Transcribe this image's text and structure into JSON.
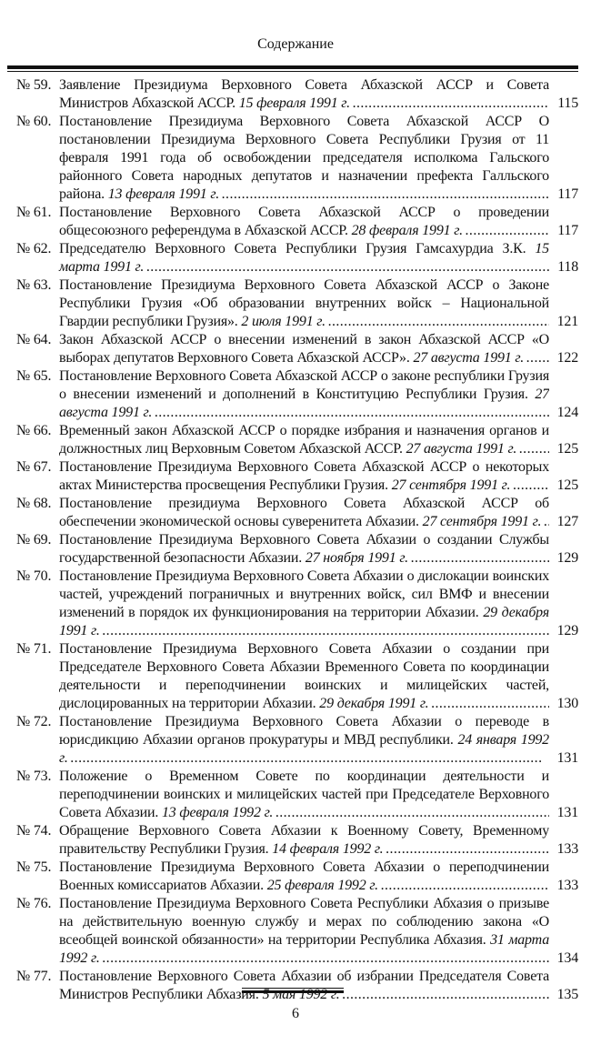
{
  "header": {
    "title": "Содержание"
  },
  "entries": [
    {
      "num": "№ 59.",
      "text": "Заявление Президиума Верховного Совета Абхазской АССР и Совета Министров Абхазской АССР.",
      "date": "15 февраля 1991 г.",
      "page": "115"
    },
    {
      "num": "№ 60.",
      "text": "Постановление Президиума Верховного Совета Абхазской АССР О постановлении Президиума Верховного Совета Республики Грузия от 11 февраля 1991 года об освобождении председателя исполкома Гальского районного Совета народных депутатов и назначении префекта Галльского района.",
      "date": "13 февраля 1991 г.",
      "page": "117"
    },
    {
      "num": "№ 61.",
      "text": "Постановление Верховного Совета Абхазской АССР о проведении общесоюзного референдума в Абхазской АССР.",
      "date": "28 февраля 1991 г.",
      "page": "117"
    },
    {
      "num": "№ 62.",
      "text": "Председателю Верховного Совета Республики Грузия Гамсахурдиа З.К.",
      "date": "15 марта 1991 г.",
      "page": "118"
    },
    {
      "num": "№ 63.",
      "text": "Постановление Президиума Верховного Совета Абхазской АССР о Законе Республики Грузия «Об образовании внутренних войск – Национальной Гвардии республики Грузия».",
      "date": "2 июля 1991 г.",
      "page": "121"
    },
    {
      "num": "№ 64.",
      "text": "Закон Абхазской АССР о внесении изменений в закон Абхазской АССР «О выборах депутатов Верховного Совета Абхазской АССР».",
      "date": "27 августа 1991 г.",
      "page": "122"
    },
    {
      "num": "№ 65.",
      "text": "Постановление Верховного Совета Абхазской АССР о законе республики Грузия о внесении изменений и дополнений в Конституцию Республики Грузия.",
      "date": "27 августа 1991 г.",
      "page": "124"
    },
    {
      "num": "№ 66.",
      "text": "Временный закон Абхазской АССР о порядке избрания и назначения органов и должностных лиц Верховным Советом Абхазской АССР.",
      "date": "27 августа 1991 г.",
      "page": "125"
    },
    {
      "num": "№ 67.",
      "text": "Постановление Президиума Верховного Совета Абхазской АССР о некоторых актах Министерства просвещения Республики Грузия.",
      "date": "27 сентября 1991 г.",
      "page": "125"
    },
    {
      "num": "№ 68.",
      "text": "Постановление президиума Верховного Совета Абхазской АССР об обеспечении экономической основы суверенитета Абхазии.",
      "date": "27 сентября 1991 г.",
      "page": "127"
    },
    {
      "num": "№ 69.",
      "text": "Постановление Президиума Верховного Совета Абхазии о создании Службы государственной безопасности Абхазии.",
      "date": "27 ноября 1991 г.",
      "page": "129"
    },
    {
      "num": "№ 70.",
      "text": "Постановление Президиума Верховного Совета Абхазии о дислокации воинских частей, учреждений пограничных и внутренних войск, сил ВМФ и внесении изменений в порядок их функционирования на территории Абхазии.",
      "date": "29 декабря 1991 г.",
      "page": "129"
    },
    {
      "num": "№ 71.",
      "text": "Постановление Президиума Верховного Совета Абхазии о создании при Председателе Верховного Совета Абхазии Временного Совета по координации деятельности и переподчинении воинских и милицейских частей, дислоцированных на территории Абхазии.",
      "date": "29 декабря 1991 г.",
      "page": "130"
    },
    {
      "num": "№ 72.",
      "text": "Постановление Президиума Верховного Совета Абхазии о переводе в юрисдикцию Абхазии органов прокуратуры и МВД республики.",
      "date": "24 января 1992 г.",
      "page": "131"
    },
    {
      "num": "№ 73.",
      "text": "Положение о Временном Совете по координации деятельности и переподчинении воинских и милицейских частей при Председателе Верховного Совета Абхазии.",
      "date": "13 февраля 1992 г.",
      "page": "131"
    },
    {
      "num": "№ 74.",
      "text": "Обращение Верховного Совета Абхазии к Военному Совету, Временному правительству Республики Грузия.",
      "date": "14 февраля 1992 г.",
      "page": "133"
    },
    {
      "num": "№ 75.",
      "text": "Постановление Президиума Верховного Совета Абхазии о переподчинении Военных комиссариатов Абхазии.",
      "date": "25 февраля 1992 г.",
      "page": "133"
    },
    {
      "num": "№ 76.",
      "text": "Постановление Президиума Верховного Совета Республики Абхазия о призыве на действительную военную службу и мерах по соблюдению закона «О всеобщей воинской обязанности» на территории Республика Абхазия.",
      "date": "31 марта 1992 г.",
      "page": "134"
    },
    {
      "num": "№ 77.",
      "text": "Постановление Верховного Совета Абхазии об избрании Председателя Совета Министров Республики Абхазия.",
      "date": "5 мая 1992 г.",
      "page": "135"
    }
  ],
  "footer": {
    "page_number": "6"
  }
}
